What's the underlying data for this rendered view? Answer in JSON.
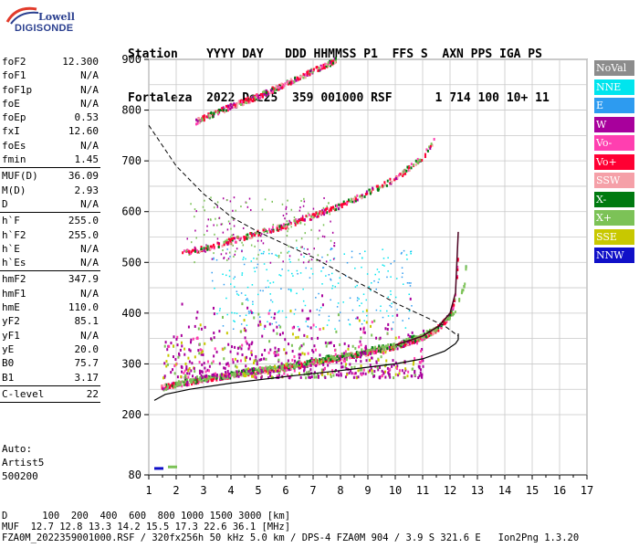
{
  "logo": {
    "line1": "Lowell",
    "line2": "DIGISONDE"
  },
  "header": {
    "line1": "Station    YYYY DAY   DDD HHMMSS P1  FFS S  AXN PPS IGA PS",
    "line2": "Fortaleza  2022 Dez25  359 001000 RSF      1 714 100 10+ 11"
  },
  "params": {
    "group1": [
      {
        "key": "foF2",
        "value": "12.300"
      },
      {
        "key": "foF1",
        "value": "N/A"
      },
      {
        "key": "foF1p",
        "value": "N/A"
      },
      {
        "key": "foE",
        "value": "N/A"
      },
      {
        "key": "foEp",
        "value": "0.53"
      },
      {
        "key": "fxI",
        "value": "12.60"
      },
      {
        "key": "foEs",
        "value": "N/A"
      },
      {
        "key": "fmin",
        "value": "1.45"
      }
    ],
    "group2": [
      {
        "key": "MUF(D)",
        "value": "36.09"
      },
      {
        "key": "M(D)",
        "value": "2.93"
      },
      {
        "key": "D",
        "value": "N/A"
      }
    ],
    "group3": [
      {
        "key": "h`F",
        "value": "255.0"
      },
      {
        "key": "h`F2",
        "value": "255.0"
      },
      {
        "key": "h`E",
        "value": "N/A"
      },
      {
        "key": "h`Es",
        "value": "N/A"
      }
    ],
    "group4": [
      {
        "key": "hmF2",
        "value": "347.9"
      },
      {
        "key": "hmF1",
        "value": "N/A"
      },
      {
        "key": "hmE",
        "value": "110.0"
      },
      {
        "key": "yF2",
        "value": "85.1"
      },
      {
        "key": "yF1",
        "value": "N/A"
      },
      {
        "key": "yE",
        "value": "20.0"
      },
      {
        "key": "B0",
        "value": "75.7"
      },
      {
        "key": "B1",
        "value": "3.17"
      }
    ],
    "group5": [
      {
        "key": "C-level",
        "value": "22"
      }
    ]
  },
  "auto": {
    "line1": "Auto:",
    "line2": "Artist5",
    "line3": "500200"
  },
  "legend": [
    {
      "label": "NoVal",
      "color": "#8c8c8c"
    },
    {
      "label": "NNE",
      "color": "#00e5ee"
    },
    {
      "label": "E",
      "color": "#2d9bf0"
    },
    {
      "label": "W",
      "color": "#a8009c"
    },
    {
      "label": "Vo-",
      "color": "#ff3fb0"
    },
    {
      "label": "Vo+",
      "color": "#ff0033"
    },
    {
      "label": "SSW",
      "color": "#f5a0a8"
    },
    {
      "label": "X-",
      "color": "#007a10"
    },
    {
      "label": "X+",
      "color": "#7cc257"
    },
    {
      "label": "SSE",
      "color": "#c8c800"
    },
    {
      "label": "NNW",
      "color": "#1010c8"
    }
  ],
  "footer": {
    "line1": "D      100  200  400  600  800 1000 1500 3000 [km]",
    "line2": "MUF  12.7 12.8 13.3 14.2 15.5 17.3 22.6 36.1 [MHz]",
    "line3": "FZA0M_2022359001000.RSF / 320fx256h 50 kHz 5.0 km / DPS-4 FZA0M 904 / 3.9 S 321.6 E   Ion2Png 1.3.20"
  },
  "chart_data": {
    "type": "scatter",
    "xlim": [
      1,
      17
    ],
    "ylim": [
      80,
      900
    ],
    "x_ticks": [
      1,
      2,
      3,
      4,
      5,
      6,
      7,
      8,
      9,
      10,
      11,
      12,
      13,
      14,
      15,
      16,
      17
    ],
    "y_ticks": [
      80,
      200,
      300,
      400,
      500,
      600,
      700,
      800,
      900
    ],
    "grid": true,
    "traces": [
      {
        "name": "O-trace F2",
        "color": "#ff0033",
        "x": [
          1.45,
          2.0,
          3.0,
          4.0,
          5.0,
          6.0,
          7.0,
          8.0,
          9.0,
          10.0,
          11.0,
          11.6,
          12.0,
          12.2,
          12.3
        ],
        "y": [
          255,
          262,
          272,
          280,
          288,
          295,
          305,
          315,
          325,
          337,
          355,
          375,
          400,
          440,
          560
        ]
      },
      {
        "name": "O-trace 2nd hop",
        "color": "#ff0033",
        "x": [
          2.2,
          3.0,
          4.0,
          5.0,
          6.0,
          7.0,
          8.0,
          9.0,
          10.0,
          11.0,
          11.4
        ],
        "y": [
          520,
          530,
          545,
          560,
          575,
          595,
          615,
          640,
          668,
          710,
          745
        ]
      },
      {
        "name": "O-trace 3rd hop",
        "color": "#ff0033",
        "x": [
          2.7,
          4.0,
          5.0,
          6.0,
          7.0,
          7.8
        ],
        "y": [
          780,
          810,
          830,
          855,
          880,
          900
        ]
      },
      {
        "name": "X-trace F2",
        "color": "#7cc257",
        "x": [
          2.0,
          4.0,
          6.0,
          8.0,
          10.0,
          11.5,
          12.2,
          12.5,
          12.6
        ],
        "y": [
          265,
          282,
          298,
          318,
          340,
          370,
          410,
          460,
          520
        ]
      }
    ],
    "profile_solid": {
      "x": [
        1.2,
        1.6,
        2.5,
        4.0,
        6.0,
        8.0,
        10.0,
        11.0,
        11.8,
        12.2,
        12.3
      ],
      "y": [
        228,
        240,
        250,
        262,
        275,
        287,
        300,
        310,
        325,
        340,
        347.9
      ]
    },
    "profile_dashed": {
      "x": [
        1.0,
        2.0,
        3.0,
        4.0,
        5.0,
        6.0,
        7.0,
        8.0,
        9.0,
        10.0,
        11.0,
        11.8,
        12.3
      ],
      "y": [
        770,
        690,
        635,
        590,
        560,
        535,
        510,
        480,
        450,
        420,
        395,
        375,
        355
      ]
    },
    "markers": [
      {
        "x": 1.4,
        "y": 92,
        "color": "#1010c8"
      },
      {
        "x": 1.9,
        "y": 95,
        "color": "#7cc257"
      }
    ]
  }
}
